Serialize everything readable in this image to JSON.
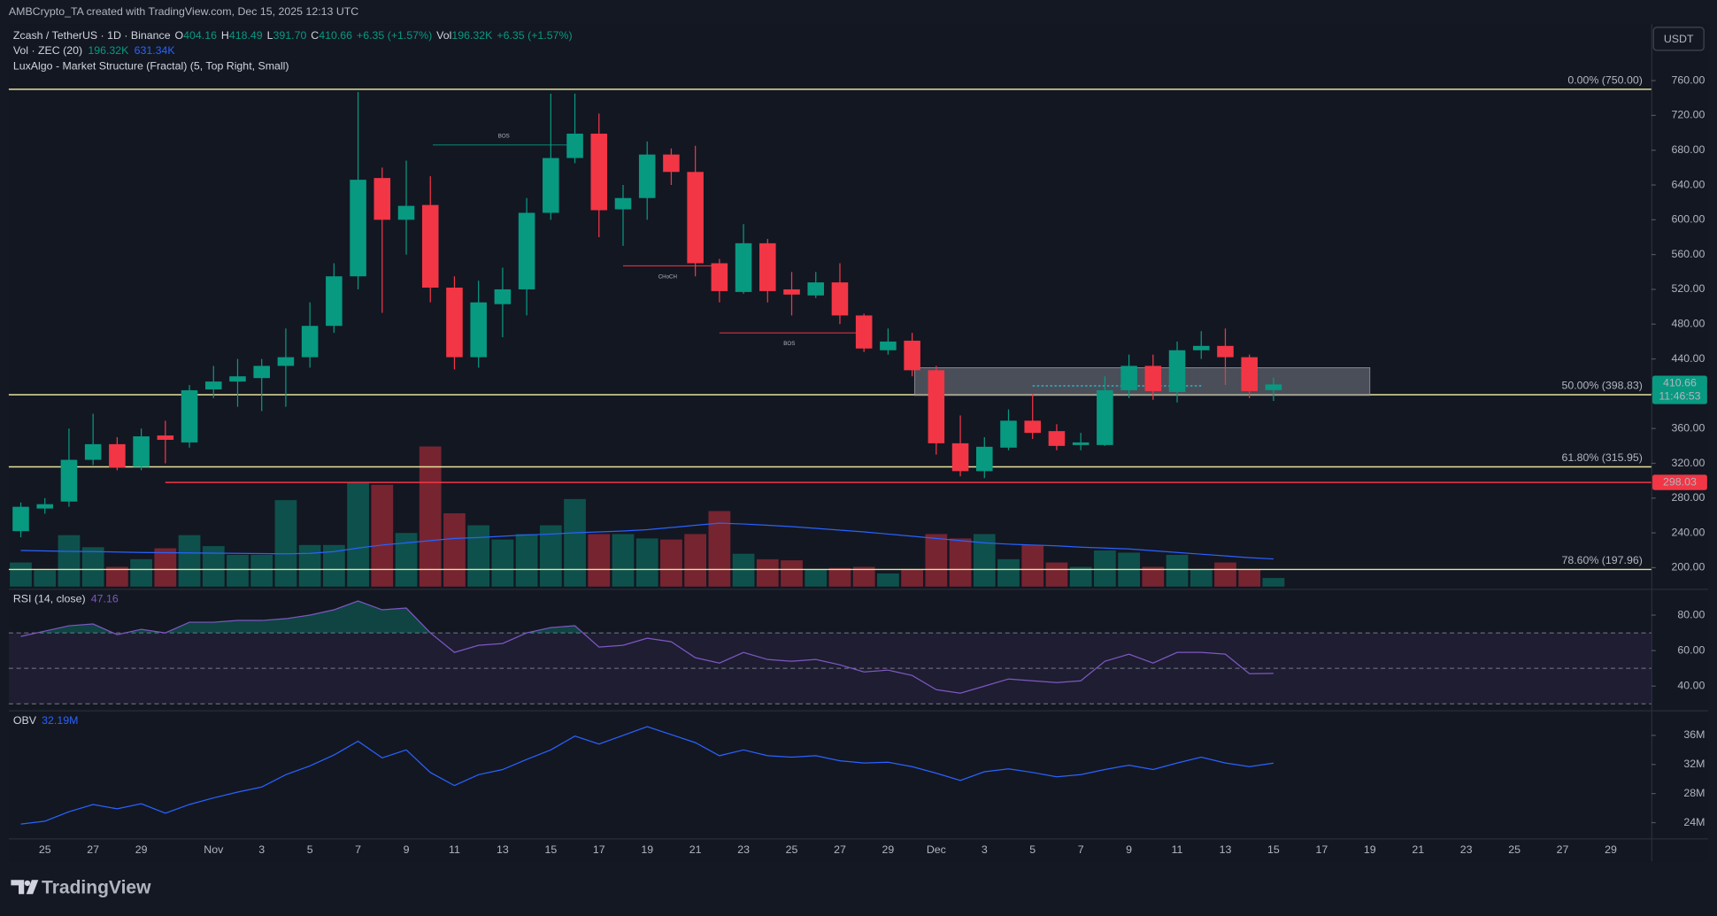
{
  "header": {
    "credit": "AMBCrypto_TA created with TradingView.com, Dec 15, 2025 12:13 UTC",
    "currency_button": "USDT",
    "logo": "TradingView"
  },
  "chart_data": [
    {
      "type": "candlestick",
      "title": "Zcash / TetherUS · 1D · Binance",
      "legend": [
        {
          "key": "O",
          "text": "404.16"
        },
        {
          "key": "H",
          "text": "418.49"
        },
        {
          "key": "L",
          "text": "391.70"
        },
        {
          "key": "C",
          "text": "410.66"
        },
        {
          "text": "+6.35 (+1.57%)"
        },
        {
          "key": "Vol",
          "text": "196.32K"
        },
        {
          "text": "+6.35 (+1.57%)"
        }
      ],
      "indicator": "LuxAlgo - Market Structure (Fractal) (5, Top Right, Small)",
      "categories": [
        null,
        "25",
        null,
        "27",
        null,
        "29",
        null,
        null,
        "Nov",
        null,
        "3",
        null,
        "5",
        null,
        "7",
        null,
        "9",
        null,
        "11",
        null,
        "13",
        null,
        "15",
        null,
        "17",
        null,
        "19",
        null,
        "21",
        null,
        "23",
        null,
        "25",
        null,
        "27",
        null,
        "29",
        null,
        "Dec",
        null,
        "3",
        null,
        "5",
        null,
        "7",
        null,
        "9",
        null,
        "11",
        null,
        "13",
        null,
        "15",
        null,
        "17",
        null,
        "19",
        null,
        "21",
        null,
        "23",
        null,
        "25",
        null,
        "27",
        null,
        "29",
        null
      ],
      "open": [
        242,
        268,
        276,
        324,
        342,
        316,
        352,
        344,
        405,
        414,
        418,
        432,
        442,
        478,
        535,
        648,
        600,
        617,
        522,
        442,
        503,
        520,
        608,
        671,
        699,
        612,
        625,
        675,
        655,
        550,
        517,
        573,
        520,
        513,
        528,
        490,
        450,
        461,
        427,
        343,
        311,
        338,
        369,
        357,
        341,
        341,
        404,
        432,
        402,
        450,
        455,
        442,
        404.16,
        null,
        null,
        null,
        null,
        null,
        null,
        null,
        null,
        null,
        null,
        null,
        null,
        null,
        null,
        null
      ],
      "high": [
        275,
        280,
        360,
        377,
        350,
        360,
        369,
        410,
        432,
        440,
        440,
        475,
        505,
        550,
        747,
        660,
        668,
        650,
        535,
        530,
        545,
        625,
        745,
        745,
        722,
        640,
        690,
        682,
        685,
        555,
        595,
        578,
        540,
        540,
        550,
        492,
        475,
        470,
        432,
        375,
        350,
        382,
        400,
        365,
        355,
        420,
        445,
        445,
        460,
        472,
        475,
        445,
        418.49,
        null,
        null,
        null,
        null,
        null,
        null,
        null,
        null,
        null,
        null,
        null,
        null,
        null,
        null,
        null
      ],
      "low": [
        235,
        262,
        270,
        318,
        312,
        312,
        320,
        338,
        395,
        385,
        380,
        385,
        430,
        470,
        520,
        493,
        560,
        505,
        428,
        430,
        465,
        490,
        600,
        665,
        580,
        570,
        600,
        640,
        535,
        505,
        515,
        505,
        490,
        510,
        480,
        448,
        445,
        420,
        330,
        305,
        303,
        335,
        348,
        335,
        335,
        340,
        395,
        393,
        390,
        440,
        410,
        395,
        391.7,
        null,
        null,
        null,
        null,
        null,
        null,
        null,
        null,
        null,
        null,
        null,
        null,
        null,
        null,
        null
      ],
      "close": [
        270,
        273,
        324,
        342,
        315,
        351,
        347,
        404,
        414,
        420,
        432,
        442,
        478,
        535,
        646,
        600,
        616,
        522,
        442,
        505,
        520,
        608,
        671,
        699,
        611,
        625,
        675,
        655,
        550,
        518,
        573,
        518,
        514,
        528,
        490,
        452,
        460,
        427,
        343,
        311,
        339,
        369,
        355,
        340,
        344,
        404,
        432,
        403,
        450,
        455,
        442,
        403,
        410.66,
        null,
        null,
        null,
        null,
        null,
        null,
        null,
        null,
        null,
        null,
        null,
        null,
        null,
        null,
        null
      ],
      "up_color": "#089981",
      "down_color": "#f23645",
      "ylim": [
        177,
        825
      ],
      "yticks": [
        {
          "value": 200,
          "label": "200.00"
        },
        {
          "value": 240,
          "label": "240.00"
        },
        {
          "value": 280,
          "label": "280.00"
        },
        {
          "value": 320,
          "label": "320.00"
        },
        {
          "value": 360,
          "label": "360.00"
        },
        {
          "value": 400,
          "label": "400.00"
        },
        {
          "value": 440,
          "label": "440.00"
        },
        {
          "value": 480,
          "label": "480.00"
        },
        {
          "value": 520,
          "label": "520.00"
        },
        {
          "value": 560,
          "label": "560.00"
        },
        {
          "value": 600,
          "label": "600.00"
        },
        {
          "value": 640,
          "label": "640.00"
        },
        {
          "value": 680,
          "label": "680.00"
        },
        {
          "value": 720,
          "label": "720.00"
        },
        {
          "value": 760,
          "label": "760.00"
        }
      ],
      "volume": {
        "name": "Vol · ZEC (20)",
        "value_label": "196.32K",
        "values": [
          550,
          375,
          1175,
          900,
          450,
          625,
          875,
          1175,
          925,
          725,
          725,
          1975,
          950,
          950,
          2375,
          2325,
          1225,
          3200,
          1675,
          1400,
          1075,
          1200,
          1400,
          2000,
          1200,
          1200,
          1100,
          1075,
          1200,
          1725,
          750,
          625,
          600,
          400,
          425,
          450,
          300,
          400,
          1200,
          1100,
          1200,
          625,
          950,
          550,
          450,
          825,
          775,
          450,
          725,
          400,
          550,
          400,
          196.32,
          null,
          null,
          null,
          null,
          null,
          null,
          null,
          null,
          null,
          null,
          null,
          null,
          null,
          null,
          null
        ],
        "ma": {
          "value_label": "631.34K",
          "color": "#2962ff",
          "values": [
            825,
            815,
            805,
            800,
            790,
            780,
            775,
            770,
            765,
            760,
            755,
            750,
            760,
            800,
            880,
            950,
            1000,
            1050,
            1100,
            1120,
            1150,
            1180,
            1200,
            1230,
            1250,
            1270,
            1300,
            1350,
            1400,
            1450,
            1430,
            1400,
            1370,
            1330,
            1290,
            1250,
            1200,
            1150,
            1100,
            1050,
            1000,
            970,
            950,
            930,
            900,
            880,
            860,
            820,
            780,
            740,
            700,
            660,
            631.34,
            null,
            null,
            null,
            null,
            null,
            null,
            null,
            null,
            null,
            null,
            null,
            null,
            null,
            null,
            null
          ]
        }
      },
      "fib_color": "#e6e19c",
      "fib_levels": [
        {
          "value": 750,
          "label": "0.00% (750.00)"
        },
        {
          "value": 398.83,
          "label": "50.00% (398.83)"
        },
        {
          "value": 315.95,
          "label": "61.80% (315.95)"
        },
        {
          "value": 197.96,
          "label": "78.60% (197.96)"
        }
      ],
      "support": {
        "value": 298.03,
        "label": "298.03",
        "x": 6,
        "color": "#f23645"
      },
      "last_price": {
        "value": 410.66,
        "label": "410.66",
        "countdown": "11:46:53"
      },
      "structures": [
        {
          "label": "BOS",
          "level": 686,
          "x": [
            17.1,
            23
          ],
          "color": "#089981"
        },
        {
          "label": "CHoCH",
          "level": 547,
          "x": [
            25,
            28.7
          ],
          "color": "#f23645"
        },
        {
          "label": "BOS",
          "level": 470,
          "x": [
            29,
            34.8
          ],
          "color": "#f23645"
        }
      ],
      "zone": {
        "low": 398,
        "high": 430,
        "x": [
          37.1,
          56
        ]
      },
      "zone_line": {
        "value": 409,
        "x": [
          42,
          49
        ],
        "color": "#26c6da"
      }
    },
    {
      "type": "line",
      "title": "RSI (14, close)",
      "value_label": "47.16",
      "color": "#7e57c2",
      "values": [
        68,
        71,
        74,
        75,
        69,
        72,
        70,
        76,
        76,
        77,
        77,
        78,
        80,
        83,
        88,
        83,
        84,
        70,
        59,
        63,
        64,
        70,
        73,
        74,
        62,
        63,
        67,
        65,
        56,
        53,
        59,
        55,
        54,
        55,
        52,
        48,
        49,
        46,
        38,
        36,
        40,
        44,
        43,
        42,
        43,
        54,
        58,
        53,
        59,
        59,
        58,
        47,
        47.16,
        null,
        null,
        null,
        null,
        null,
        null,
        null,
        null,
        null,
        null,
        null,
        null,
        null,
        null,
        null
      ],
      "ylim": [
        27,
        93
      ],
      "yticks": [
        {
          "value": 40,
          "label": "40.00"
        },
        {
          "value": 60,
          "label": "60.00"
        },
        {
          "value": 80,
          "label": "80.00"
        }
      ],
      "bands": [
        70,
        50,
        30
      ]
    },
    {
      "type": "line",
      "title": "OBV",
      "value_label": "32.19M",
      "color": "#2962ff",
      "values": [
        23.8,
        24.2,
        25.5,
        26.5,
        25.9,
        26.6,
        25.3,
        26.5,
        27.4,
        28.2,
        28.9,
        30.6,
        31.8,
        33.3,
        35.2,
        32.9,
        34,
        30.9,
        29.1,
        30.6,
        31.3,
        32.7,
        34,
        35.9,
        34.8,
        36,
        37.2,
        36.1,
        35,
        33.2,
        34,
        33.2,
        33,
        33.2,
        32.5,
        32.2,
        32.3,
        31.7,
        30.8,
        29.8,
        31,
        31.4,
        30.9,
        30.3,
        30.6,
        31.3,
        31.9,
        31.3,
        32.2,
        33,
        32.2,
        31.7,
        32.19,
        null,
        null,
        null,
        null,
        null,
        null,
        null,
        null,
        null,
        null,
        null,
        null,
        null,
        null,
        null
      ],
      "ylim": [
        22,
        39
      ],
      "yticks": [
        {
          "value": 24,
          "label": "24M"
        },
        {
          "value": 28,
          "label": "28M"
        },
        {
          "value": 32,
          "label": "32M"
        },
        {
          "value": 36,
          "label": "36M"
        }
      ]
    }
  ]
}
